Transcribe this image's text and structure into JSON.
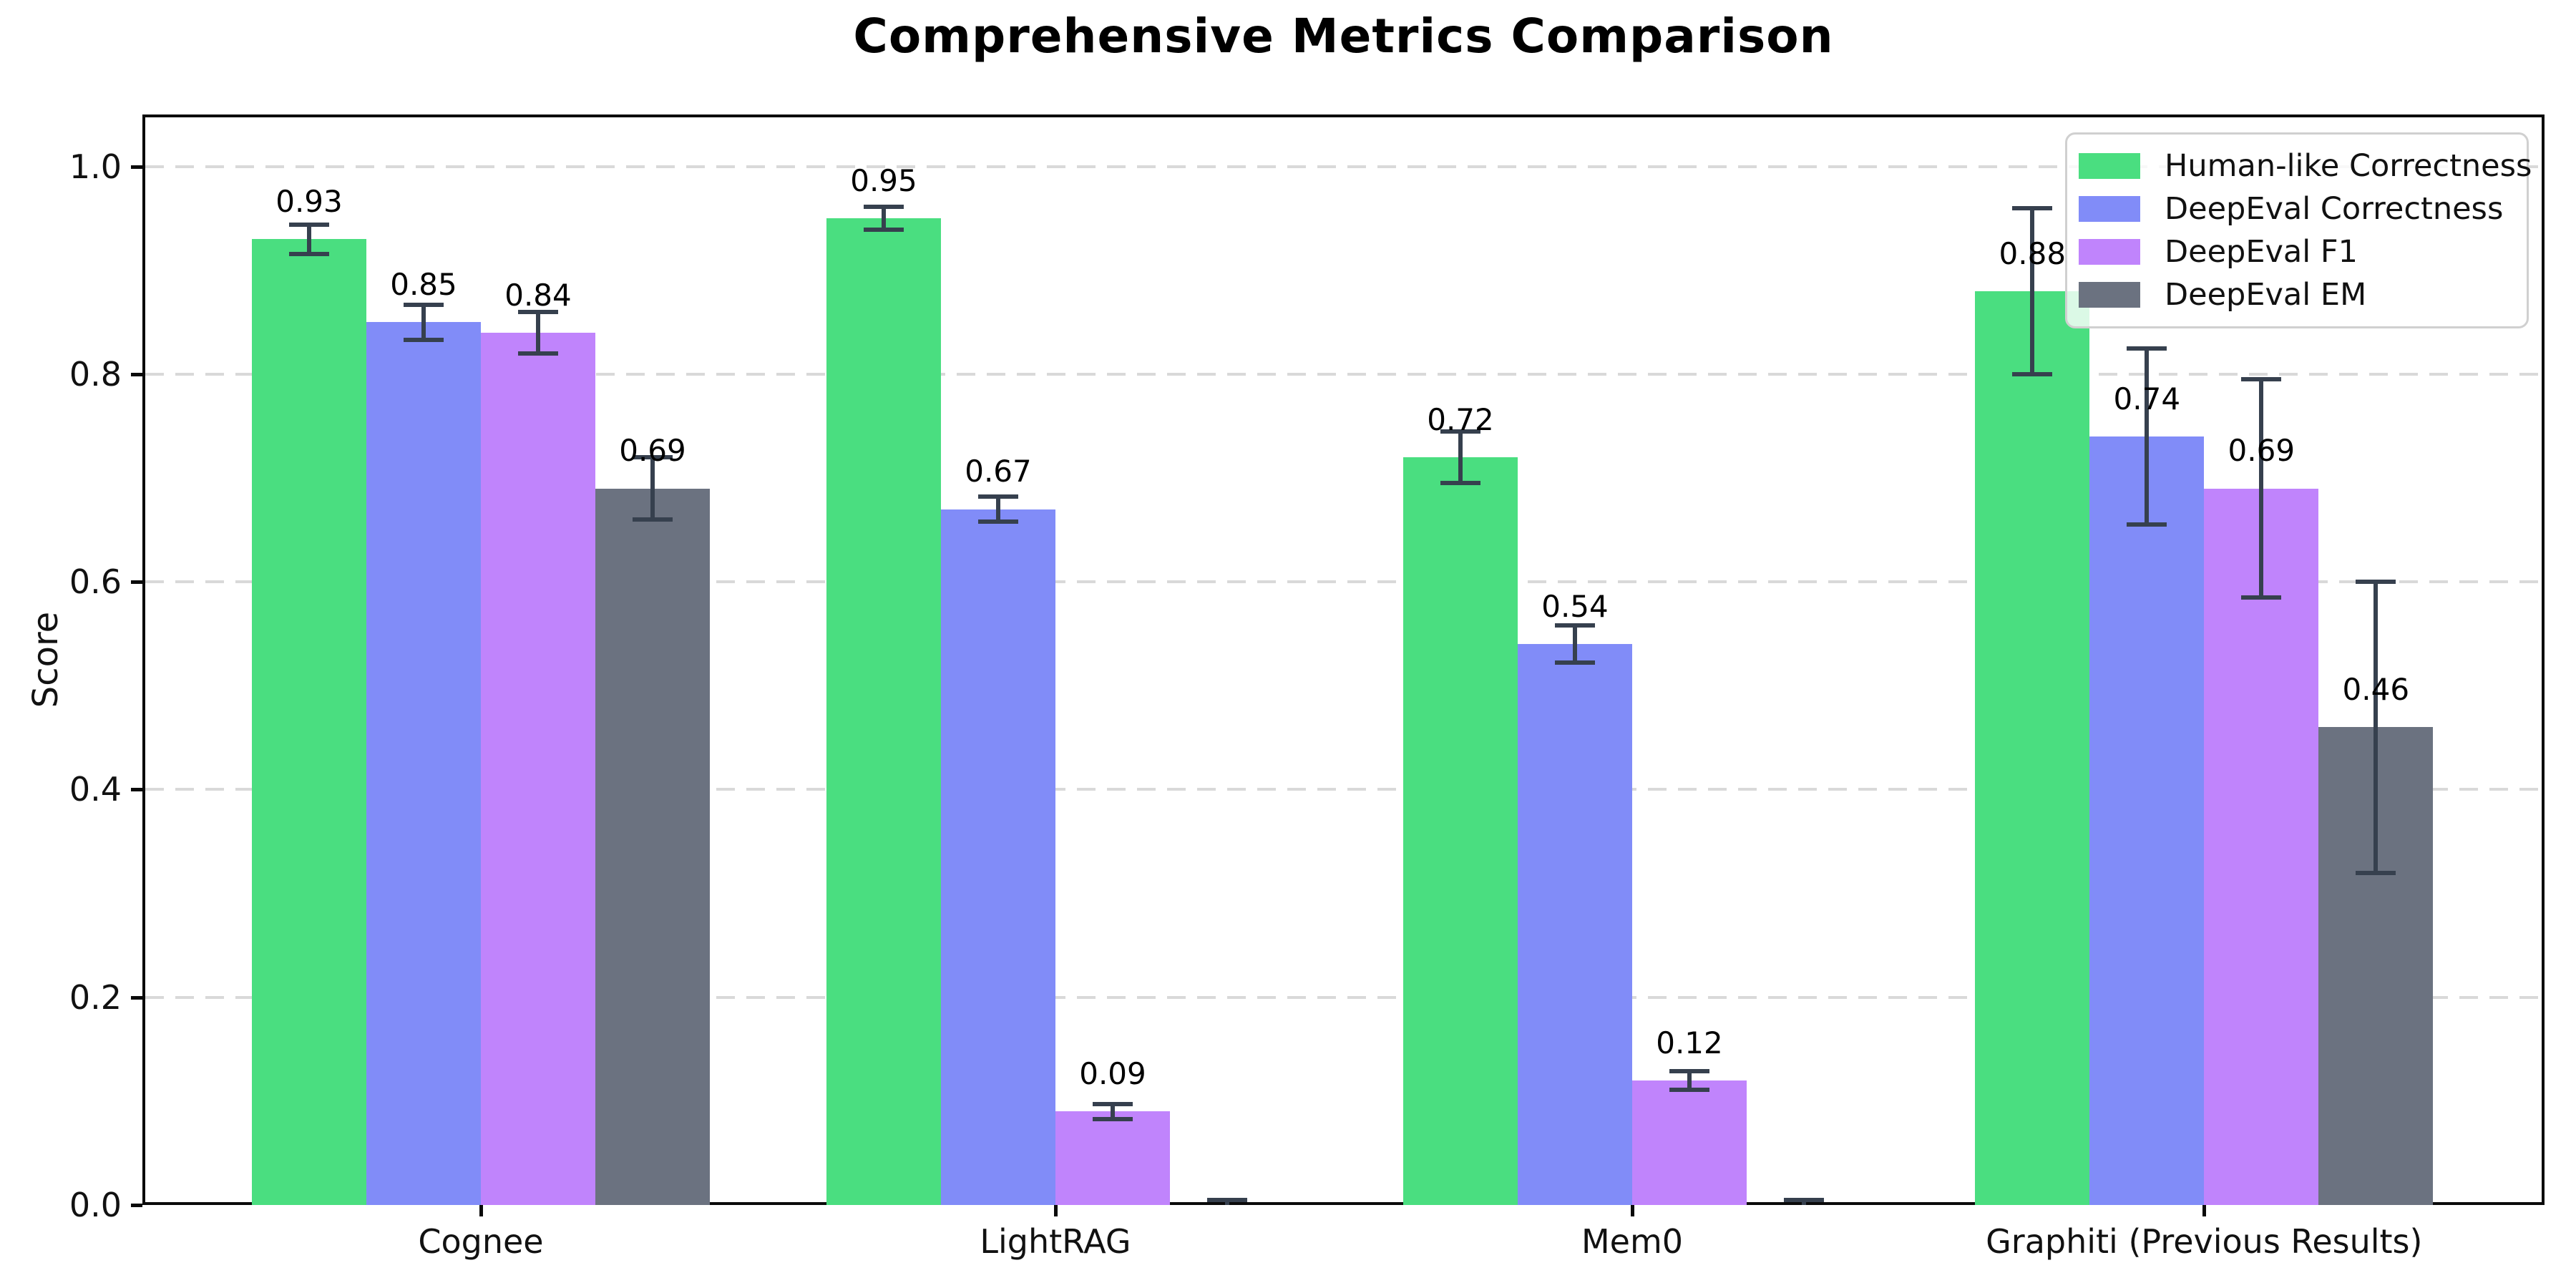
{
  "figure": {
    "title": "Comprehensive Metrics Comparison",
    "ylabel": "Score"
  },
  "chart_data": {
    "type": "bar",
    "title": "Comprehensive Metrics Comparison",
    "xlabel": "",
    "ylabel": "Score",
    "categories": [
      "Cognee",
      "LightRAG",
      "Mem0",
      "Graphiti (Previous Results)"
    ],
    "series": [
      {
        "name": "Human-like Correctness",
        "color": "#4ade80",
        "values": [
          0.93,
          0.95,
          0.72,
          0.88
        ],
        "errors": [
          0.014,
          0.011,
          0.025,
          0.08
        ],
        "value_labels": [
          "0.93",
          "0.95",
          "0.72",
          "0.88"
        ]
      },
      {
        "name": "DeepEval Correctness",
        "color": "#818cf8",
        "values": [
          0.85,
          0.67,
          0.54,
          0.74
        ],
        "errors": [
          0.017,
          0.012,
          0.018,
          0.085
        ],
        "value_labels": [
          "0.85",
          "0.67",
          "0.54",
          "0.74"
        ]
      },
      {
        "name": "DeepEval F1",
        "color": "#c084fc",
        "values": [
          0.84,
          0.09,
          0.12,
          0.69
        ],
        "errors": [
          0.02,
          0.007,
          0.009,
          0.105
        ],
        "value_labels": [
          "0.84",
          "0.09",
          "0.12",
          "0.69"
        ]
      },
      {
        "name": "DeepEval EM",
        "color": "#6b7280",
        "values": [
          0.69,
          0.0,
          0.0,
          0.46
        ],
        "errors": [
          0.03,
          0.005,
          0.005,
          0.14
        ],
        "value_labels": [
          "0.69",
          "",
          "",
          "0.46"
        ]
      }
    ],
    "yticks": [
      0.0,
      0.2,
      0.4,
      0.6,
      0.8,
      1.0
    ],
    "ytick_labels": [
      "0.0",
      "0.2",
      "0.4",
      "0.6",
      "0.8",
      "1.0"
    ],
    "ylim": [
      0,
      1.05
    ],
    "grid": {
      "axis": "y",
      "style": "dashed",
      "color": "#d9d9d9"
    },
    "legend": {
      "position": "upper right",
      "entries": [
        "Human-like Correctness",
        "DeepEval Correctness",
        "DeepEval F1",
        "DeepEval EM"
      ]
    },
    "error_bar_color": "#36404e",
    "background": "#ffffff"
  }
}
